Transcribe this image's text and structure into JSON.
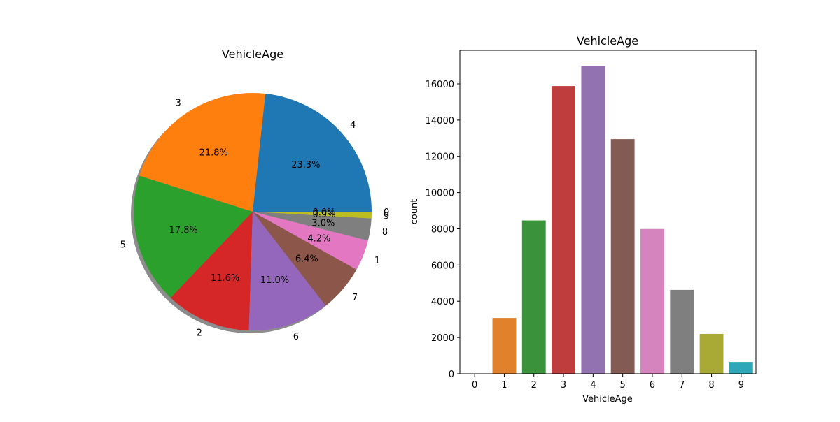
{
  "chart_data": [
    {
      "type": "pie",
      "title": "VehicleAge",
      "shadow": true,
      "start_angle_deg": 0,
      "direction": "counterclockwise",
      "slices": [
        {
          "label": "4",
          "percent": 23.3,
          "pct_label": "23.3%",
          "color": "#1f77b4"
        },
        {
          "label": "3",
          "percent": 21.8,
          "pct_label": "21.8%",
          "color": "#ff7f0e"
        },
        {
          "label": "5",
          "percent": 17.8,
          "pct_label": "17.8%",
          "color": "#2ca02c"
        },
        {
          "label": "2",
          "percent": 11.6,
          "pct_label": "11.6%",
          "color": "#d62728"
        },
        {
          "label": "6",
          "percent": 11.0,
          "pct_label": "11.0%",
          "color": "#9467bd"
        },
        {
          "label": "7",
          "percent": 6.4,
          "pct_label": "6.4%",
          "color": "#8c564b"
        },
        {
          "label": "1",
          "percent": 4.2,
          "pct_label": "4.2%",
          "color": "#e377c2"
        },
        {
          "label": "8",
          "percent": 3.0,
          "pct_label": "3.0%",
          "color": "#7f7f7f"
        },
        {
          "label": "9",
          "percent": 0.9,
          "pct_label": "0.9%",
          "color": "#bcbd22"
        },
        {
          "label": "0",
          "percent": 0.0,
          "pct_label": "0.0%",
          "color": "#17becf"
        }
      ]
    },
    {
      "type": "bar",
      "title": "VehicleAge",
      "xlabel": "VehicleAge",
      "ylabel": "count",
      "categories": [
        "0",
        "1",
        "2",
        "3",
        "4",
        "5",
        "6",
        "7",
        "8",
        "9"
      ],
      "values": [
        10,
        3080,
        8460,
        15880,
        17000,
        12950,
        7990,
        4630,
        2200,
        650
      ],
      "colors": [
        "#3274a1",
        "#e1812c",
        "#3a923a",
        "#c03d3e",
        "#9372b2",
        "#845b53",
        "#d684bd",
        "#7f7f7f",
        "#a9aa35",
        "#2ea8b8"
      ],
      "ylim": [
        0,
        17850
      ],
      "yticks": [
        0,
        2000,
        4000,
        6000,
        8000,
        10000,
        12000,
        14000,
        16000
      ],
      "grid": false
    }
  ]
}
